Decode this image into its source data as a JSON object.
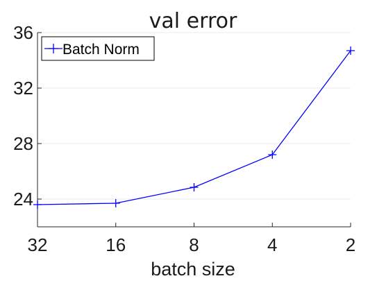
{
  "chart_data": {
    "type": "line",
    "title": "val error",
    "xlabel": "batch size",
    "ylabel": "",
    "categories": [
      "32",
      "16",
      "8",
      "4",
      "2"
    ],
    "ylim": [
      22,
      36
    ],
    "yticks": [
      24,
      28,
      32,
      36
    ],
    "grid": true,
    "legend_position": "top-left",
    "series": [
      {
        "name": "Batch Norm",
        "color": "#0000ff",
        "marker": "plus",
        "values": [
          23.6,
          23.7,
          24.85,
          27.2,
          34.7
        ]
      }
    ]
  }
}
